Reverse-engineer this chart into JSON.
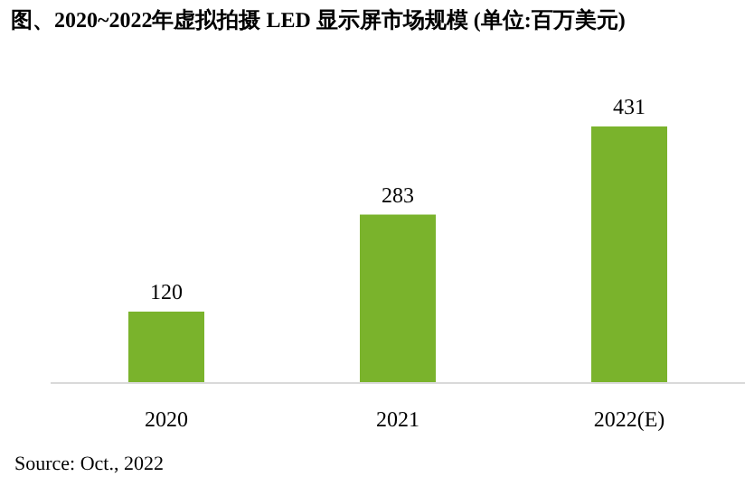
{
  "chart_data": {
    "type": "bar",
    "title": "图、2020~2022年虚拟拍摄 LED 显示屏市场规模 (单位:百万美元)",
    "categories": [
      "2020",
      "2021",
      "2022(E)"
    ],
    "values": [
      120,
      283,
      431
    ],
    "color": "#7ab32c",
    "data_labels": true,
    "annotations": [
      "Source: Oct., 2022"
    ]
  }
}
